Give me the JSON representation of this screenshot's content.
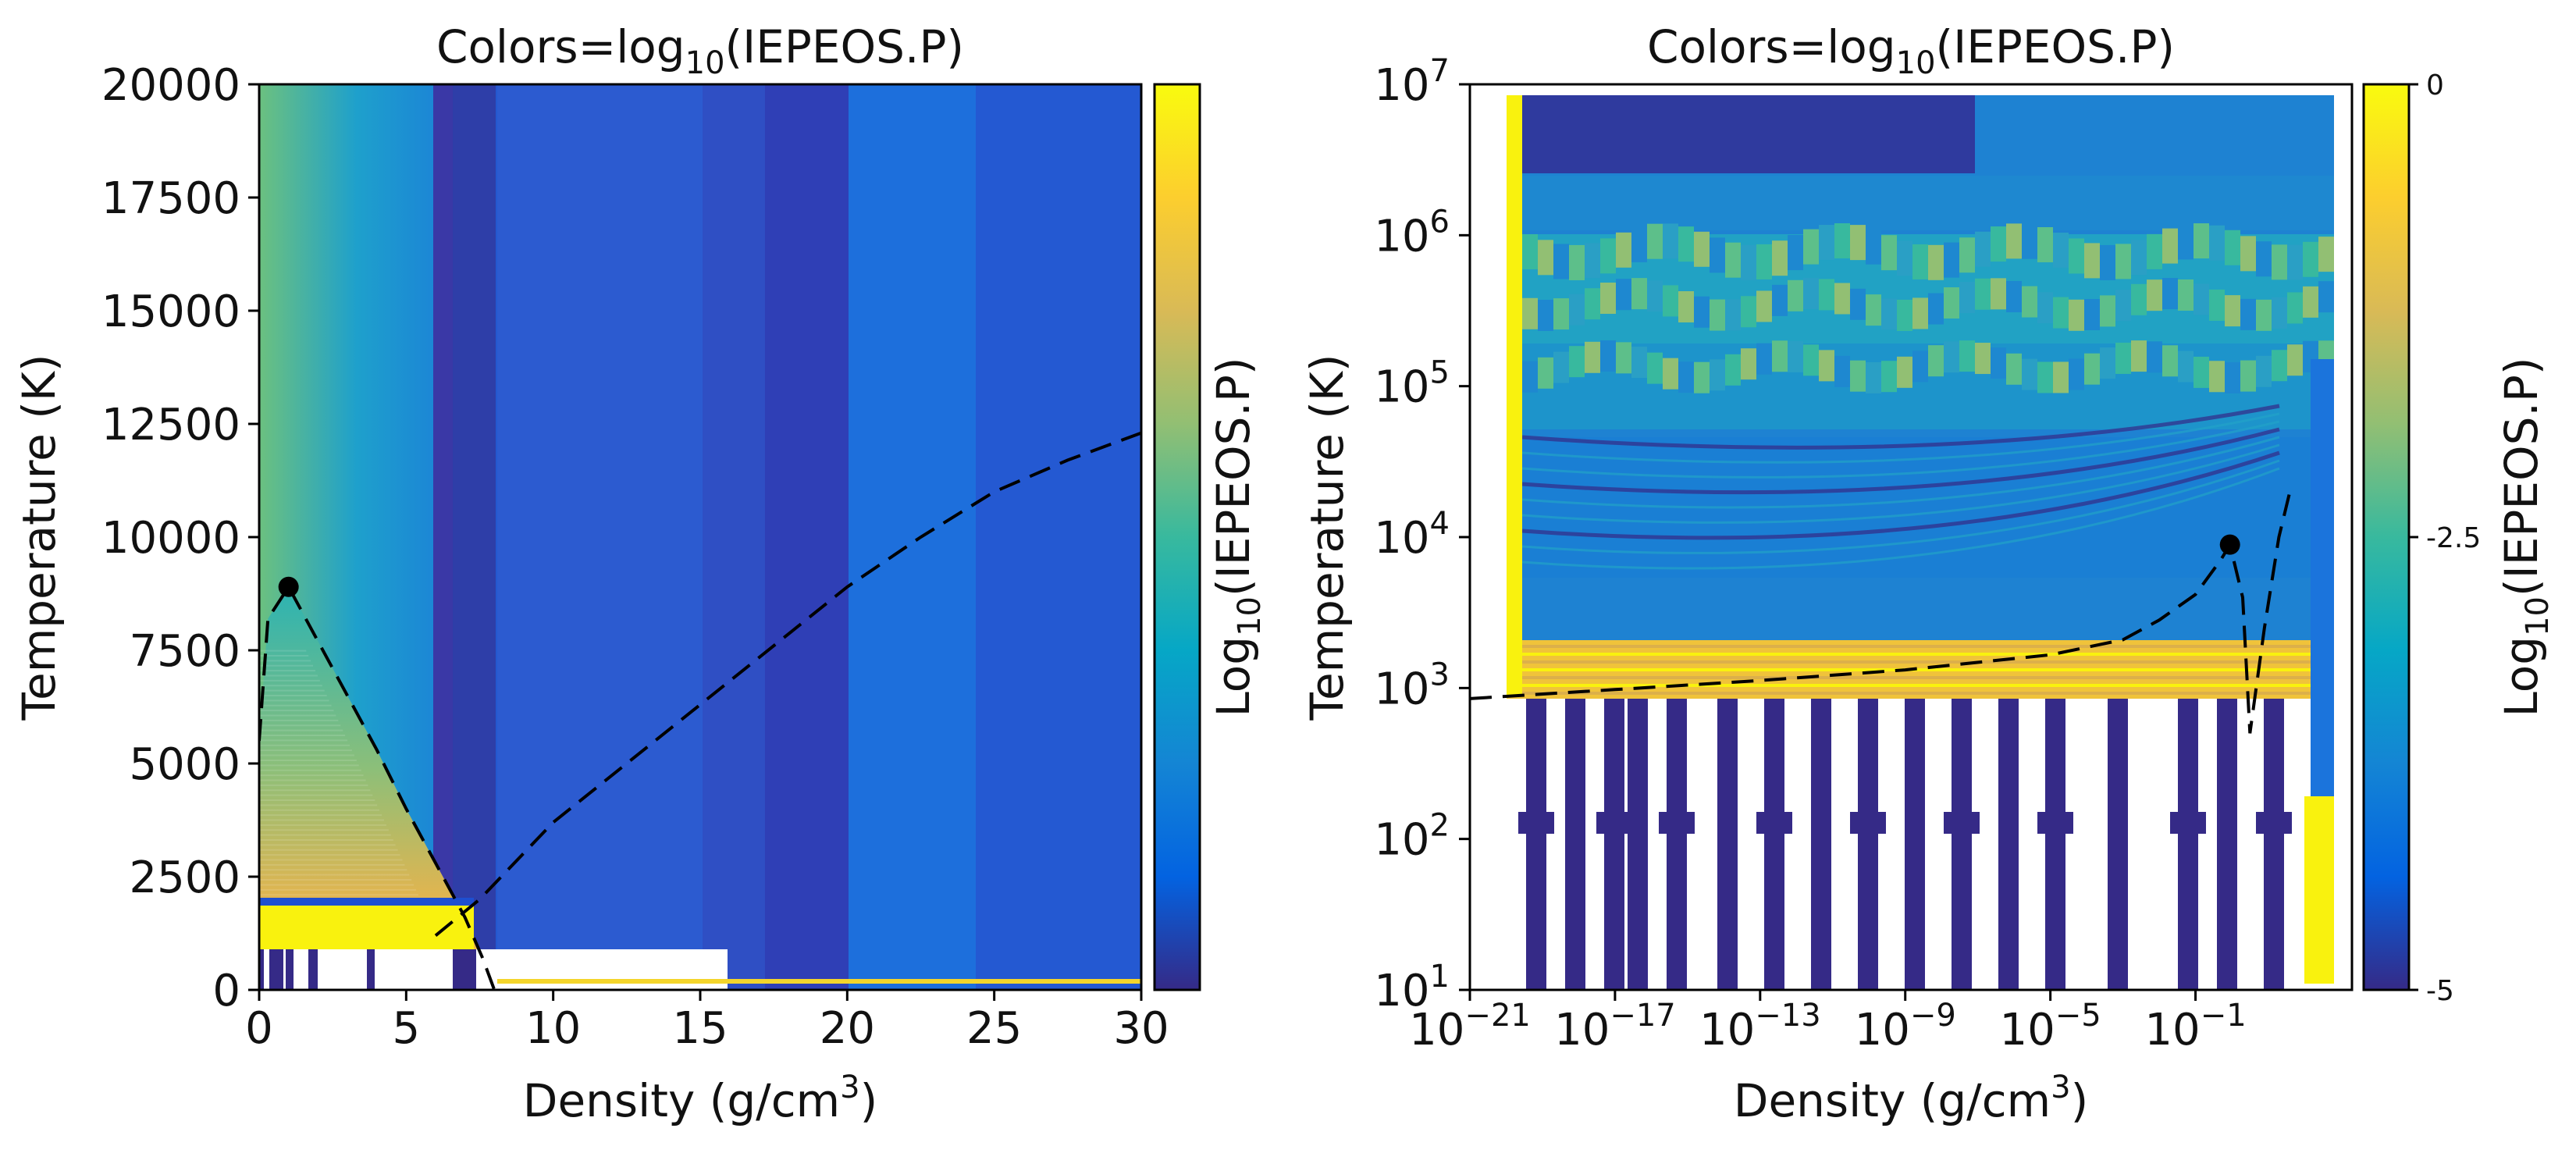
{
  "chart_data": [
    {
      "type": "heatmap",
      "title_base": "Colors=log",
      "title_sub": "10",
      "title_rest": "(IEPEOS.P)",
      "xlabel_base": "Density (g/cm",
      "xlabel_sup": "3",
      "xlabel_end": ")",
      "ylabel": "Temperature (K)",
      "xlim": [
        0,
        30
      ],
      "ylim": [
        0,
        20000
      ],
      "x_ticks": [
        "0",
        "5",
        "10",
        "15",
        "20",
        "25",
        "30"
      ],
      "y_ticks": [
        "0",
        "2500",
        "5000",
        "7500",
        "10000",
        "12500",
        "15000",
        "17500",
        "20000"
      ],
      "colorbar_label_base": "Log",
      "colorbar_label_sub": "10",
      "colorbar_label_rest": "(IEPEOS.P)",
      "colorbar_ticks": [],
      "colormap": [
        "#352a87",
        "#0363e1",
        "#1485d4",
        "#06a7c6",
        "#38b99e",
        "#92bf73",
        "#d9ba56",
        "#fcce2e",
        "#f9fb0e"
      ],
      "critical_point": {
        "x": 1.0,
        "y": 8900
      },
      "phase_boundary_dashed": [
        [
          0.0,
          5500
        ],
        [
          0.3,
          8200
        ],
        [
          1.0,
          8900
        ],
        [
          2.0,
          7700
        ],
        [
          3.0,
          6500
        ],
        [
          4.0,
          5300
        ],
        [
          5.0,
          4000
        ],
        [
          6.0,
          2800
        ],
        [
          7.0,
          1600
        ],
        [
          7.6,
          700
        ],
        [
          8.0,
          0
        ]
      ],
      "melting_curve_dashed": [
        [
          6.0,
          1200
        ],
        [
          7.5,
          2000
        ],
        [
          10,
          3700
        ],
        [
          12.5,
          5000
        ],
        [
          15,
          6300
        ],
        [
          17.5,
          7600
        ],
        [
          20,
          8900
        ],
        [
          22.5,
          10000
        ],
        [
          25,
          11000
        ],
        [
          27.5,
          11700
        ],
        [
          30,
          12300
        ]
      ]
    },
    {
      "type": "heatmap",
      "title_base": "Colors=log",
      "title_sub": "10",
      "title_rest": "(IEPEOS.P)",
      "xlabel_base": "Density (g/cm",
      "xlabel_sup": "3",
      "xlabel_end": ")",
      "ylabel": "Temperature (K)",
      "x_scale": "log",
      "y_scale": "log",
      "xlim_log10": [
        -21,
        2
      ],
      "ylim_log10": [
        1,
        7
      ],
      "x_ticks": [
        {
          "base": "10",
          "exp": "−21"
        },
        {
          "base": "10",
          "exp": "−17"
        },
        {
          "base": "10",
          "exp": "−13"
        },
        {
          "base": "10",
          "exp": "−9"
        },
        {
          "base": "10",
          "exp": "−5"
        },
        {
          "base": "10",
          "exp": "−1"
        }
      ],
      "y_ticks": [
        {
          "base": "10",
          "exp": "1"
        },
        {
          "base": "10",
          "exp": "2"
        },
        {
          "base": "10",
          "exp": "3"
        },
        {
          "base": "10",
          "exp": "4"
        },
        {
          "base": "10",
          "exp": "5"
        },
        {
          "base": "10",
          "exp": "6"
        },
        {
          "base": "10",
          "exp": "7"
        }
      ],
      "colorbar_label_base": "Log",
      "colorbar_label_sub": "10",
      "colorbar_label_rest": "(IEPEOS.P)",
      "colorbar_range": [
        -5,
        0
      ],
      "colorbar_ticks": [
        "0",
        "-2.5",
        "-5"
      ],
      "critical_point": {
        "x_log10": -0.05,
        "y_log10": 3.95
      },
      "phase_boundary_dashed_log10": [
        [
          -21,
          2.93
        ],
        [
          -17,
          2.99
        ],
        [
          -13,
          3.05
        ],
        [
          -9,
          3.12
        ],
        [
          -5,
          3.22
        ],
        [
          -3,
          3.32
        ],
        [
          -2,
          3.45
        ],
        [
          -1,
          3.62
        ],
        [
          -0.3,
          3.85
        ],
        [
          -0.05,
          3.95
        ],
        [
          0.3,
          3.6
        ],
        [
          0.5,
          2.7
        ],
        [
          0.9,
          3.4
        ],
        [
          1.3,
          4.0
        ],
        [
          1.6,
          4.3
        ]
      ]
    }
  ]
}
